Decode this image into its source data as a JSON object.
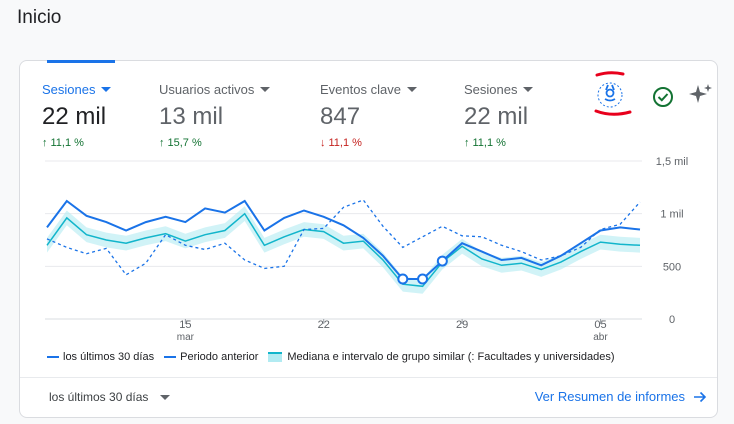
{
  "page": {
    "title": "Inicio"
  },
  "metrics": [
    {
      "label": "Sesiones",
      "value": "22 mil",
      "delta": "11,1 %",
      "trend": "up",
      "active": true
    },
    {
      "label": "Usuarios activos",
      "value": "13 mil",
      "delta": "15,7 %",
      "trend": "up",
      "active": false
    },
    {
      "label": "Eventos clave",
      "value": "847",
      "delta": "11,1 %",
      "trend": "down",
      "active": false
    },
    {
      "label": "Sesiones",
      "value": "22 mil",
      "delta": "11,1 %",
      "trend": "up",
      "active": false
    }
  ],
  "icons": {
    "benchmark": "ribbon-badge-icon",
    "status": "check-circle-icon",
    "insights": "sparkle-icon"
  },
  "colors": {
    "accent": "#1a73e8",
    "band_fill": "#b2ebf2",
    "band_line": "#12b5cb",
    "positive": "#137333",
    "negative": "#c5221f",
    "annotation": "#e8001c"
  },
  "chart_data": {
    "type": "line",
    "x": [
      "08 mar",
      "09 mar",
      "10 mar",
      "11 mar",
      "12 mar",
      "13 mar",
      "14 mar",
      "15 mar",
      "16 mar",
      "17 mar",
      "18 mar",
      "19 mar",
      "20 mar",
      "21 mar",
      "22 mar",
      "23 mar",
      "24 mar",
      "25 mar",
      "26 mar",
      "27 mar",
      "28 mar",
      "29 mar",
      "30 mar",
      "31 mar",
      "01 abr",
      "02 abr",
      "03 abr",
      "04 abr",
      "05 abr",
      "06 abr",
      "07 abr"
    ],
    "x_tick_labels": [
      {
        "index": 7,
        "label": "15",
        "sublabel": "mar"
      },
      {
        "index": 14,
        "label": "22",
        "sublabel": ""
      },
      {
        "index": 21,
        "label": "29",
        "sublabel": ""
      },
      {
        "index": 28,
        "label": "05",
        "sublabel": "abr"
      }
    ],
    "y_ticks": [
      "0",
      "500",
      "1 mil",
      "1,5 mil"
    ],
    "ylim": [
      0,
      1500
    ],
    "grid": true,
    "series": [
      {
        "name": "los últimos 30 días",
        "style": "solid",
        "values": [
          870,
          1120,
          980,
          920,
          840,
          920,
          970,
          920,
          1050,
          1010,
          1120,
          840,
          960,
          1030,
          970,
          890,
          770,
          600,
          380,
          380,
          550,
          720,
          640,
          560,
          580,
          510,
          600,
          720,
          840,
          870,
          850
        ]
      },
      {
        "name": "Periodo anterior",
        "style": "dashed",
        "values": [
          760,
          680,
          620,
          670,
          420,
          530,
          800,
          700,
          660,
          720,
          560,
          480,
          500,
          850,
          860,
          1060,
          1130,
          880,
          680,
          780,
          880,
          790,
          780,
          700,
          640,
          560,
          600,
          680,
          850,
          900,
          1110
        ]
      },
      {
        "name": "Mediana e intervalo de grupo similar (: Facultades y universidades)",
        "style": "band",
        "values": [
          700,
          960,
          800,
          750,
          720,
          770,
          810,
          740,
          800,
          840,
          1000,
          700,
          780,
          850,
          830,
          720,
          740,
          560,
          330,
          310,
          540,
          690,
          570,
          510,
          530,
          470,
          540,
          640,
          730,
          710,
          700
        ]
      }
    ],
    "highlighted_points": [
      18,
      19,
      20
    ]
  },
  "legend": {
    "current": "los últimos 30 días",
    "previous": "Periodo anterior",
    "peer": "Mediana e intervalo de grupo similar (: Facultades y universidades)"
  },
  "footer": {
    "range": "los últimos 30 días",
    "report_link": "Ver Resumen de informes"
  }
}
